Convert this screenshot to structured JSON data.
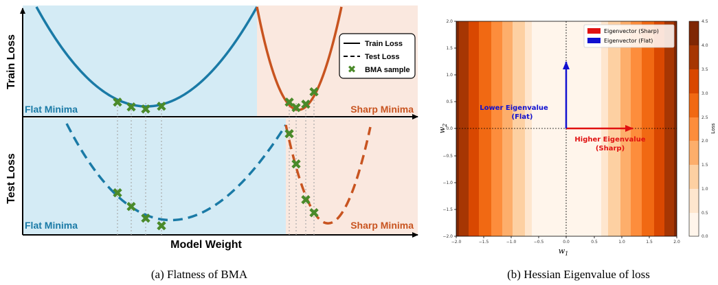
{
  "left_figure": {
    "top_ylabel": "Train Loss",
    "bottom_ylabel": "Test Loss",
    "xlabel": "Model Weight",
    "flat_label_top": "Flat Minima",
    "sharp_label_top": "Sharp Minima",
    "flat_label_bottom": "Flat Minima",
    "sharp_label_bottom": "Sharp Minima",
    "legend": {
      "train": "Train Loss",
      "test": "Test Loss",
      "bma": "BMA sample"
    },
    "caption": "(a) Flatness of BMA",
    "colors": {
      "flat_curve": "#1a7aa6",
      "sharp_curve": "#c85420",
      "flat_bg": "#d4ebf5",
      "sharp_bg": "#fae8df",
      "marker": "#4a8a2a"
    }
  },
  "right_figure": {
    "xlabel": "w_1",
    "ylabel": "w_2",
    "x_ticks": [
      "−2.0",
      "−1.5",
      "−1.0",
      "−0.5",
      "0.0",
      "0.5",
      "1.0",
      "1.5",
      "2.0"
    ],
    "y_ticks": [
      "2.0",
      "1.5",
      "1.0",
      "0.5",
      "0.0",
      "−0.5",
      "−1.0",
      "−1.5",
      "−2.0"
    ],
    "legend": {
      "sharp": "Eigenvector (Sharp)",
      "flat": "Eigenvector (Flat)"
    },
    "flat_annot_line1": "Lower Eigenvalue",
    "flat_annot_line2": "(Flat)",
    "sharp_annot_line1": "Higher Eigenvalue",
    "sharp_annot_line2": "(Sharp)",
    "colorbar_label": "Loss",
    "colorbar_ticks": [
      "4.5",
      "4.0",
      "3.5",
      "3.0",
      "2.5",
      "2.0",
      "1.5",
      "1.0",
      "0.5",
      "0.0"
    ],
    "caption": "(b) Hessian Eigenvalue of loss",
    "colors": {
      "sharp_arrow": "#e01010",
      "flat_arrow": "#1010d0"
    }
  }
}
